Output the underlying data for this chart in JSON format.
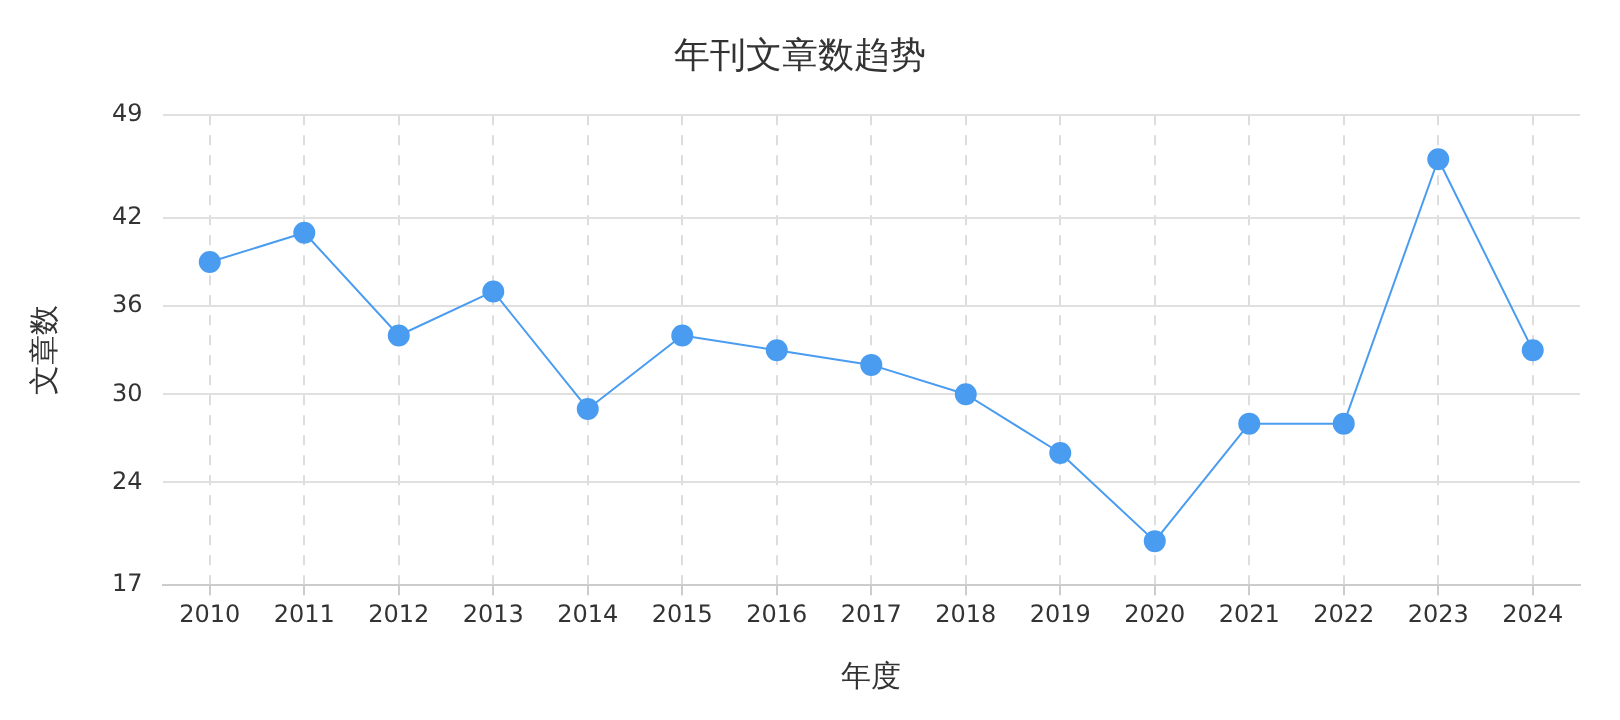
{
  "chart_data": {
    "type": "line",
    "title": "年刊文章数趋势",
    "xlabel": "年度",
    "ylabel": "文章数",
    "categories": [
      "2010",
      "2011",
      "2012",
      "2013",
      "2014",
      "2015",
      "2016",
      "2017",
      "2018",
      "2019",
      "2020",
      "2021",
      "2022",
      "2023",
      "2024"
    ],
    "series": [
      {
        "color": "#4a9cf0",
        "values": [
          39,
          41,
          34,
          37,
          29,
          34,
          33,
          32,
          30,
          26,
          20,
          28,
          28,
          46,
          33
        ]
      }
    ],
    "ylim": [
      17,
      49
    ],
    "yticks": [
      17,
      24,
      30,
      36,
      42,
      49
    ],
    "grid": true,
    "legend": false,
    "marker": "circle",
    "line_style": "solid"
  }
}
